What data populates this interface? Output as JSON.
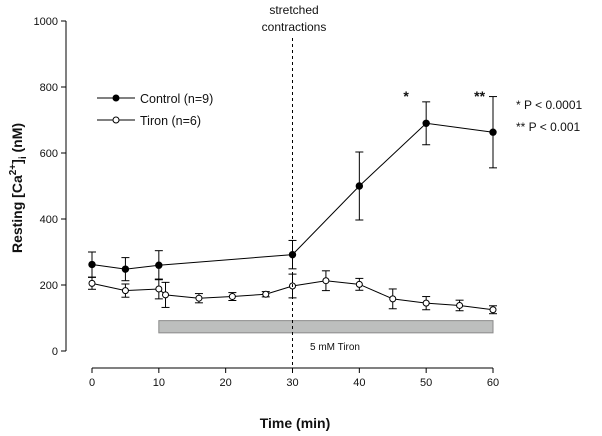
{
  "chart_data": {
    "type": "line",
    "xlabel": "Time (min)",
    "ylabel_parts": [
      "Resting [Ca",
      "2+",
      "]",
      "i",
      " (nM)"
    ],
    "xlim": [
      0,
      60
    ],
    "ylim": [
      0,
      1000
    ],
    "xticks": [
      0,
      10,
      20,
      30,
      40,
      50,
      60
    ],
    "yticks": [
      0,
      200,
      400,
      600,
      800,
      1000
    ],
    "grid": false,
    "legend_position": "top-left",
    "series": [
      {
        "name": "Control (n=9)",
        "marker": "filled-circle",
        "color": "#000000",
        "x": [
          0,
          5,
          10,
          30,
          40,
          50,
          60
        ],
        "y": [
          262,
          248,
          260,
          292,
          500,
          690,
          663
        ],
        "err": [
          38,
          35,
          44,
          43,
          103,
          65,
          108
        ]
      },
      {
        "name": "Tiron (n=6)",
        "marker": "open-circle",
        "color": "#000000",
        "x": [
          0,
          5,
          10,
          11,
          16,
          21,
          26,
          30,
          35,
          40,
          45,
          50,
          55,
          60
        ],
        "y": [
          205,
          183,
          188,
          170,
          160,
          165,
          172,
          197,
          213,
          202,
          158,
          145,
          138,
          125
        ],
        "err": [
          18,
          20,
          30,
          38,
          14,
          12,
          8,
          36,
          30,
          18,
          30,
          20,
          16,
          12
        ]
      }
    ],
    "annotations": {
      "phase_label_line1": "stretched",
      "phase_label_line2": "contractions",
      "phase_x": 30,
      "significance_marks": [
        {
          "x": 47,
          "label": "*"
        },
        {
          "x": 58,
          "label": "**"
        }
      ],
      "significance_legend": [
        "* P < 0.0001",
        "** P < 0.001"
      ],
      "treatment_bar": {
        "label": "5 mM Tiron",
        "x_start": 10,
        "x_end": 60,
        "y_low": 55,
        "y_high": 92,
        "color": "#bdbfbe"
      }
    }
  }
}
